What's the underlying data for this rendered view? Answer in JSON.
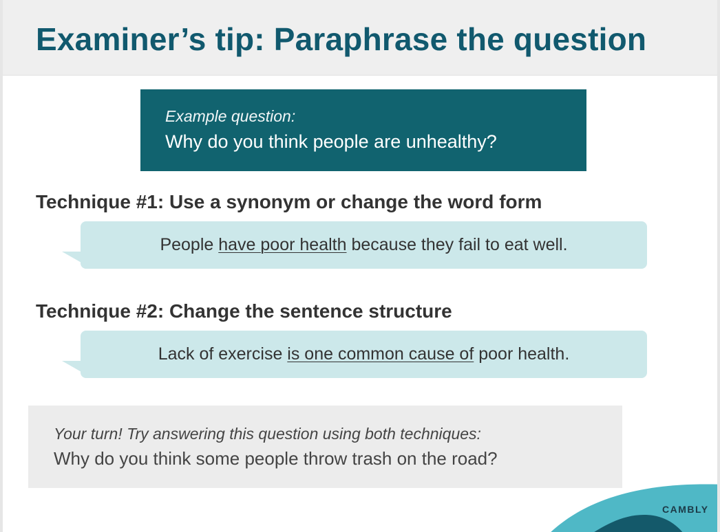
{
  "header": {
    "title": "Examiner’s tip: Paraphrase the question"
  },
  "example": {
    "label": "Example question:",
    "question": "Why do you think people are unhealthy?"
  },
  "techniques": [
    {
      "heading": "Technique #1: Use a synonym or change the word form",
      "sentence_before": "People ",
      "sentence_underlined": "have poor health",
      "sentence_after": " because they fail to eat well."
    },
    {
      "heading": "Technique #2: Change the sentence structure",
      "sentence_before": "Lack of exercise ",
      "sentence_underlined": "is one common cause of",
      "sentence_after": " poor health."
    }
  ],
  "your_turn": {
    "label": "Your turn! Try answering this question using both techniques:",
    "question": "Why do you think some people throw trash on the road?"
  },
  "brand": {
    "name": "CAMBLY"
  },
  "colors": {
    "title": "#11596e",
    "example_box": "#11636f",
    "bubble": "#cce8ea",
    "turn_box": "#ececec",
    "brand_teal_light": "#4fb8c6",
    "brand_teal_dark": "#14596a"
  }
}
